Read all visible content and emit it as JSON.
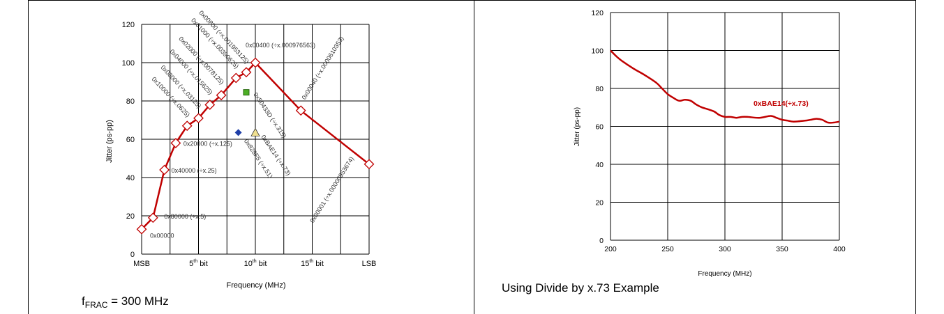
{
  "left_panel": {
    "caption_prefix": "f",
    "caption_sub": "FRAC",
    "caption_suffix": " = 300 MHz"
  },
  "right_panel": {
    "caption": "Using Divide by x.73 Example"
  },
  "colors": {
    "curve": "#c00000",
    "grid": "#000000",
    "marker_fill": "#ffffff",
    "green_marker": "#4caf25",
    "blue_marker": "#1f3fa8",
    "yellow_marker": "#f0e090"
  },
  "chart_data": [
    {
      "type": "line",
      "title": "",
      "xlabel": "Frequency (MHz)",
      "ylabel": "Jitter (ps-pp)",
      "ylim": [
        0,
        120
      ],
      "yticks": [
        "0",
        "20",
        "40",
        "60",
        "80",
        "100",
        "120"
      ],
      "xticks": [
        {
          "pos": 0,
          "label": "MSB",
          "sup": ""
        },
        {
          "pos": 5,
          "label": "5",
          "sup": "th",
          "suffix": " bit"
        },
        {
          "pos": 10,
          "label": "10",
          "sup": "th",
          "suffix": " bit"
        },
        {
          "pos": 15,
          "label": "15",
          "sup": "th",
          "suffix": " bit"
        },
        {
          "pos": 20,
          "label": "LSB",
          "sup": ""
        }
      ],
      "xlim": [
        0,
        20
      ],
      "grid": true,
      "series": [
        {
          "points": [
            {
              "x": 0,
              "y": 13,
              "label": "0x00000"
            },
            {
              "x": 1,
              "y": 19,
              "label": "0x80000 (÷x.5)"
            },
            {
              "x": 2,
              "y": 44,
              "label": "0x40000 (÷x.25)"
            },
            {
              "x": 3,
              "y": 58,
              "label": "0x20000 (÷x.125)"
            },
            {
              "x": 4,
              "y": 67,
              "label": "0x10000 (÷x.0625)"
            },
            {
              "x": 5,
              "y": 71,
              "label": "0x08000 (÷x.03125)"
            },
            {
              "x": 6,
              "y": 78,
              "label": "0x04000 (÷x.015625)"
            },
            {
              "x": 7,
              "y": 83,
              "label": "0x02000 (÷x.0078125)"
            },
            {
              "x": 8.3,
              "y": 92,
              "label": "0x01000 (÷x.00390625)"
            },
            {
              "x": 9.2,
              "y": 95,
              "label": "0x00800 (÷x.001953125)"
            },
            {
              "x": 10,
              "y": 100,
              "label": "0x00400 (÷x.000976563)"
            },
            {
              "x": 14,
              "y": 75,
              "label": "0x00040 (÷x.0000610353)"
            },
            {
              "x": 20,
              "y": 47,
              "label": "0x00001 (÷x.00000953674)"
            }
          ]
        }
      ],
      "extra_points": [
        {
          "x": 9.2,
          "y": 84.5,
          "shape": "square",
          "label": "0x50433D (÷x.315)"
        },
        {
          "x": 8.5,
          "y": 63.5,
          "shape": "diamond",
          "label": "0x828F5 (÷x.51)"
        },
        {
          "x": 10,
          "y": 63.5,
          "shape": "triangle",
          "label": "0xBAE14 (÷x.73)"
        }
      ]
    },
    {
      "type": "line",
      "title": "",
      "xlabel": "Frequency (MHz)",
      "ylabel": "Jitter (ps-pp)",
      "xlim": [
        200,
        400
      ],
      "ylim": [
        0,
        120
      ],
      "xticks": [
        "200",
        "250",
        "300",
        "350",
        "400"
      ],
      "yticks": [
        "0",
        "20",
        "40",
        "60",
        "80",
        "100",
        "120"
      ],
      "grid": true,
      "annotation": "0xBAE14(÷x.73)",
      "series": [
        {
          "x": [
            200,
            205,
            210,
            220,
            230,
            240,
            245,
            250,
            255,
            260,
            265,
            270,
            275,
            280,
            290,
            295,
            300,
            305,
            310,
            315,
            320,
            330,
            340,
            345,
            350,
            355,
            360,
            370,
            375,
            380,
            385,
            390,
            395,
            400
          ],
          "y": [
            100,
            97,
            94.5,
            90.5,
            87,
            83,
            80,
            77,
            75,
            73.5,
            74,
            73.5,
            71.5,
            70,
            68,
            66,
            65,
            65,
            64.5,
            65,
            65,
            64.5,
            65.5,
            64.5,
            63.5,
            63,
            62.5,
            63,
            63.5,
            64,
            63.5,
            62,
            62,
            62.5
          ]
        }
      ]
    }
  ]
}
